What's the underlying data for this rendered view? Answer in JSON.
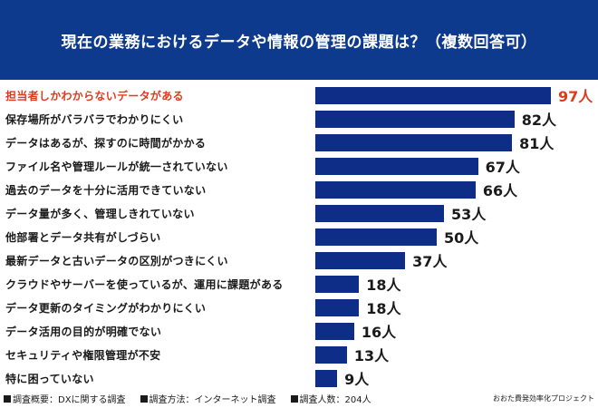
{
  "title": "現在の業務におけるデータや情報の管理の課題は？（複数回答可）",
  "chart_data": {
    "type": "bar",
    "orientation": "horizontal",
    "title": "現在の業務におけるデータや情報の管理の課題は？（複数回答可）",
    "unit": "人",
    "highlight_index": 0,
    "highlight_color": "#e03a1e",
    "bar_color": "#0d2d86",
    "xlim": [
      0,
      100
    ],
    "categories": [
      "担当者しかわからないデータがある",
      "保存場所がバラバラでわかりにくい",
      "データはあるが、探すのに時間がかかる",
      "ファイル名や管理ルールが統一されていない",
      "過去のデータを十分に活用できていない",
      "データ量が多く、管理しきれていない",
      "他部署とデータ共有がしづらい",
      "最新データと古いデータの区別がつきにくい",
      "クラウドやサーバーを使っているが、運用に課題がある",
      "データ更新のタイミングがわかりにくい",
      "データ活用の目的が明確でない",
      "セキュリティや権限管理が不安",
      "特に困っていない"
    ],
    "values": [
      97,
      82,
      81,
      67,
      66,
      53,
      50,
      37,
      18,
      18,
      16,
      13,
      9
    ],
    "value_labels": [
      "97人",
      "82人",
      "81人",
      "67人",
      "66人",
      "53人",
      "50人",
      "37人",
      "18人",
      "18人",
      "16人",
      "13人",
      "9人"
    ]
  },
  "footer": {
    "notes": [
      "調査概要：DXに関する調査",
      "調査方法：インターネット調査",
      "調査人数：204人"
    ],
    "brand": "おおた費発効率化プロジェクト"
  }
}
